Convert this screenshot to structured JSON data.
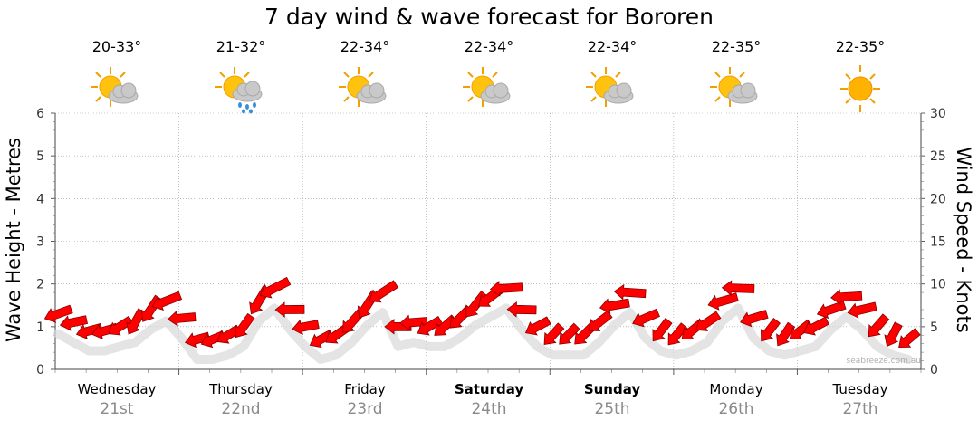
{
  "chart_data": {
    "type": "line",
    "title": "7 day wind & wave forecast for Bororen",
    "ylabel_left": "Wave Height - Metres",
    "ylabel_right": "Wind Speed - Knots",
    "ylim_left": [
      0,
      6
    ],
    "ylim_right": [
      0,
      30
    ],
    "yticks_left": [
      "0",
      "1",
      "2",
      "3",
      "4",
      "5",
      "6"
    ],
    "yticks_right": [
      "0",
      "5",
      "10",
      "15",
      "20",
      "25",
      "30"
    ],
    "grid": true,
    "watermark": "seabreeze.com.au",
    "days": [
      {
        "name": "Wednesday",
        "date": "21st",
        "temp": "20-33°",
        "icon": "partly-cloudy-icon",
        "bold": false
      },
      {
        "name": "Thursday",
        "date": "22nd",
        "temp": "21-32°",
        "icon": "rain-shower-icon",
        "bold": false
      },
      {
        "name": "Friday",
        "date": "23rd",
        "temp": "22-34°",
        "icon": "partly-cloudy-icon",
        "bold": false
      },
      {
        "name": "Saturday",
        "date": "24th",
        "temp": "22-34°",
        "icon": "partly-cloudy-icon",
        "bold": true
      },
      {
        "name": "Sunday",
        "date": "25th",
        "temp": "22-34°",
        "icon": "partly-cloudy-icon",
        "bold": true
      },
      {
        "name": "Monday",
        "date": "26th",
        "temp": "22-35°",
        "icon": "partly-cloudy-icon",
        "bold": false
      },
      {
        "name": "Tuesday",
        "date": "27th",
        "temp": "22-35°",
        "icon": "sunny-icon",
        "bold": false
      }
    ],
    "series": [
      {
        "name": "Wind Speed - Knots",
        "axis": "right",
        "color": "#ff0000",
        "unit": "knots",
        "x_hours": [
          0,
          3,
          6,
          9,
          12,
          15,
          18,
          21,
          24,
          27,
          30,
          33,
          36,
          39,
          42,
          45,
          48,
          51,
          54,
          57,
          60,
          63,
          66,
          69,
          72,
          75,
          78,
          81,
          84,
          87,
          90,
          93,
          96,
          99,
          102,
          105,
          108,
          111,
          114,
          117,
          120,
          123,
          126,
          129,
          132,
          135,
          138,
          141,
          144,
          147,
          150,
          153,
          156,
          159,
          162,
          165
        ],
        "values": [
          6.5,
          5.5,
          4.5,
          4.5,
          5,
          5.5,
          7,
          8,
          6,
          3.5,
          3.5,
          4,
          5,
          8,
          9.5,
          7,
          5,
          3.5,
          4,
          5.5,
          7.5,
          9,
          5,
          5.5,
          5,
          5,
          6,
          7.5,
          8.5,
          9.5,
          7,
          5,
          4,
          4,
          4,
          5.5,
          7.5,
          9,
          6,
          4.5,
          4,
          4.5,
          5.5,
          8,
          9.5,
          6,
          4.5,
          4,
          4.5,
          5,
          7,
          8.5,
          7,
          5,
          4,
          3.5
        ]
      }
    ]
  }
}
